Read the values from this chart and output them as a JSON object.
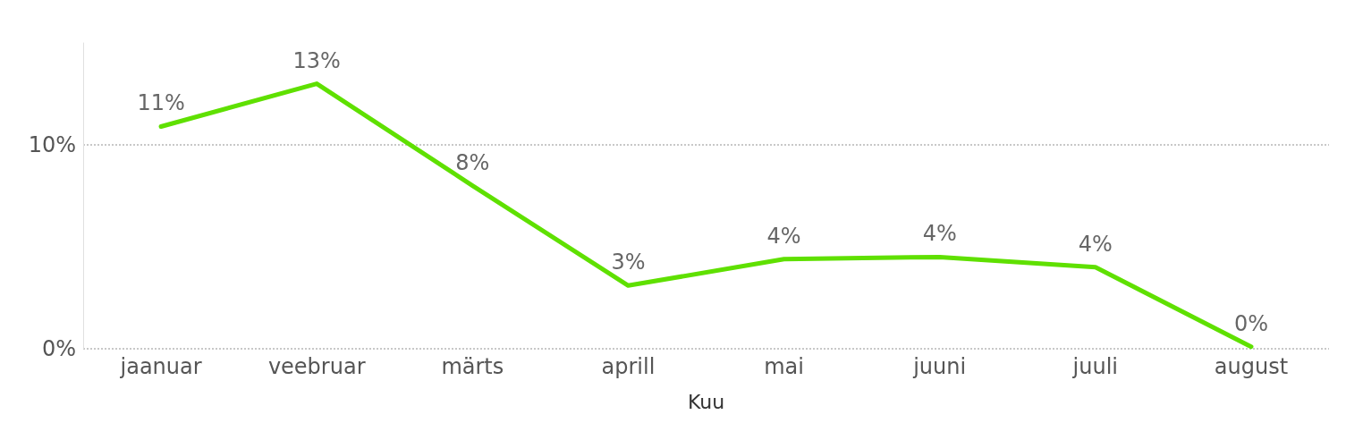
{
  "chart_data": {
    "type": "line",
    "xlabel": "Kuu",
    "categories": [
      "jaanuar",
      "veebruar",
      "märts",
      "aprill",
      "mai",
      "juuni",
      "juuli",
      "august"
    ],
    "series": [
      {
        "color": "#5fe000",
        "values": [
          10.9,
          13.0,
          8.0,
          3.1,
          4.4,
          4.5,
          4.0,
          0.1
        ],
        "value_labels": [
          "11%",
          "13%",
          "8%",
          "3%",
          "4%",
          "4%",
          "4%",
          "0%"
        ]
      }
    ],
    "ylim": [
      0,
      15
    ],
    "yticks": [
      {
        "value": 0,
        "label": "0%"
      },
      {
        "value": 10,
        "label": "10%"
      }
    ],
    "grid": "y",
    "marker": "none",
    "line_style": "solid"
  }
}
